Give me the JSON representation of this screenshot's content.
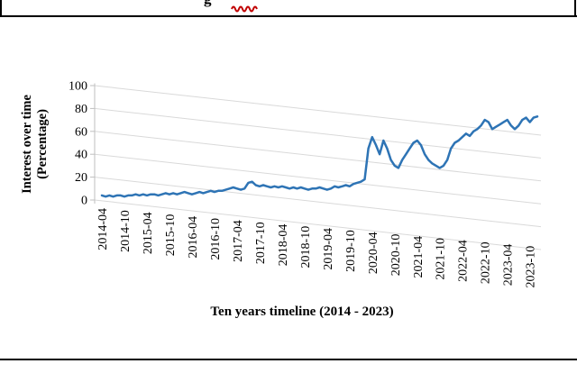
{
  "caption_fragment": "g",
  "y_axis_title_line1": "Interest over time",
  "y_axis_title_line2": "(Percentage)",
  "x_axis_title": "Ten years timeline (2014 - 2023)",
  "colors": {
    "series": "#2E74B5",
    "gridline": "#D9D9D9",
    "axis": "#BFBFBF",
    "rule": "#000000",
    "red_mark": "#C00000"
  },
  "chart_data": {
    "type": "line",
    "title": "",
    "xlabel": "Ten years timeline (2014 - 2023)",
    "ylabel": "Interest over time (Percentage)",
    "ylim": [
      0,
      100
    ],
    "y_ticks": [
      0,
      20,
      40,
      60,
      80,
      100
    ],
    "x_tick_labels": [
      "2014-04",
      "2014-10",
      "2015-04",
      "2015-10",
      "2016-04",
      "2016-10",
      "2017-04",
      "2017-10",
      "2018-04",
      "2018-10",
      "2019-04",
      "2019-10",
      "2020-04",
      "2020-10",
      "2021-04",
      "2021-10",
      "2022-04",
      "2022-10",
      "2023-04",
      "2023-10"
    ],
    "x_interval": "monthly",
    "x_start": "2014-04",
    "x_end": "2023-12",
    "grid": "diagonal-light",
    "legend": "none",
    "values": [
      4,
      3,
      4,
      3,
      4,
      4,
      3,
      4,
      4,
      5,
      4,
      5,
      4,
      5,
      5,
      4,
      5,
      6,
      5,
      6,
      5,
      6,
      7,
      6,
      5,
      6,
      7,
      6,
      7,
      8,
      7,
      8,
      8,
      9,
      10,
      11,
      10,
      9,
      10,
      15,
      16,
      13,
      12,
      13,
      12,
      11,
      12,
      11,
      12,
      11,
      10,
      11,
      10,
      11,
      10,
      9,
      10,
      10,
      11,
      10,
      9,
      10,
      12,
      11,
      12,
      13,
      12,
      14,
      15,
      16,
      18,
      45,
      55,
      48,
      40,
      52,
      45,
      35,
      30,
      28,
      35,
      40,
      45,
      50,
      52,
      48,
      40,
      35,
      32,
      30,
      28,
      30,
      35,
      45,
      50,
      52,
      55,
      58,
      56,
      60,
      62,
      65,
      70,
      68,
      62,
      64,
      66,
      68,
      70,
      65,
      62,
      65,
      70,
      72,
      68,
      72,
      73
    ]
  }
}
